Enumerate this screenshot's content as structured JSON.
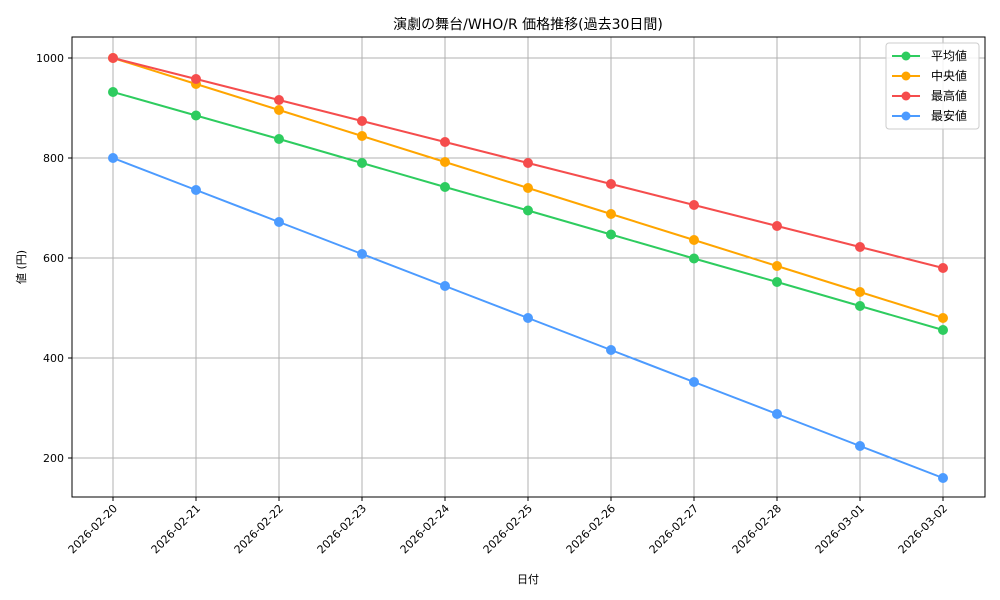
{
  "chart_data": {
    "type": "line",
    "title": "演劇の舞台/WHO/R 価格推移(過去30日間)",
    "xlabel": "日付",
    "ylabel": "値 (円)",
    "x": [
      "2026-02-20",
      "2026-02-21",
      "2026-02-22",
      "2026-02-23",
      "2026-02-24",
      "2026-02-25",
      "2026-02-26",
      "2026-02-27",
      "2026-02-28",
      "2026-03-01",
      "2026-03-02"
    ],
    "yticks": [
      200,
      400,
      600,
      800,
      1000
    ],
    "ylim": [
      120,
      1042
    ],
    "grid": true,
    "legend_position": "upper right",
    "series": [
      {
        "name": "平均値",
        "color": "#2ecc5f",
        "values": [
          932,
          885,
          838,
          790,
          742,
          695,
          647,
          599,
          552,
          504,
          456
        ]
      },
      {
        "name": "中央値",
        "color": "#ffa500",
        "values": [
          1000,
          948,
          896,
          844,
          792,
          740,
          688,
          636,
          584,
          532,
          480
        ]
      },
      {
        "name": "最高値",
        "color": "#f54d4d",
        "values": [
          1000,
          958,
          916,
          874,
          832,
          790,
          748,
          706,
          664,
          622,
          580
        ]
      },
      {
        "name": "最安値",
        "color": "#4c9bff",
        "values": [
          800,
          736,
          672,
          608,
          544,
          480,
          416,
          352,
          288,
          224,
          160
        ]
      }
    ]
  }
}
